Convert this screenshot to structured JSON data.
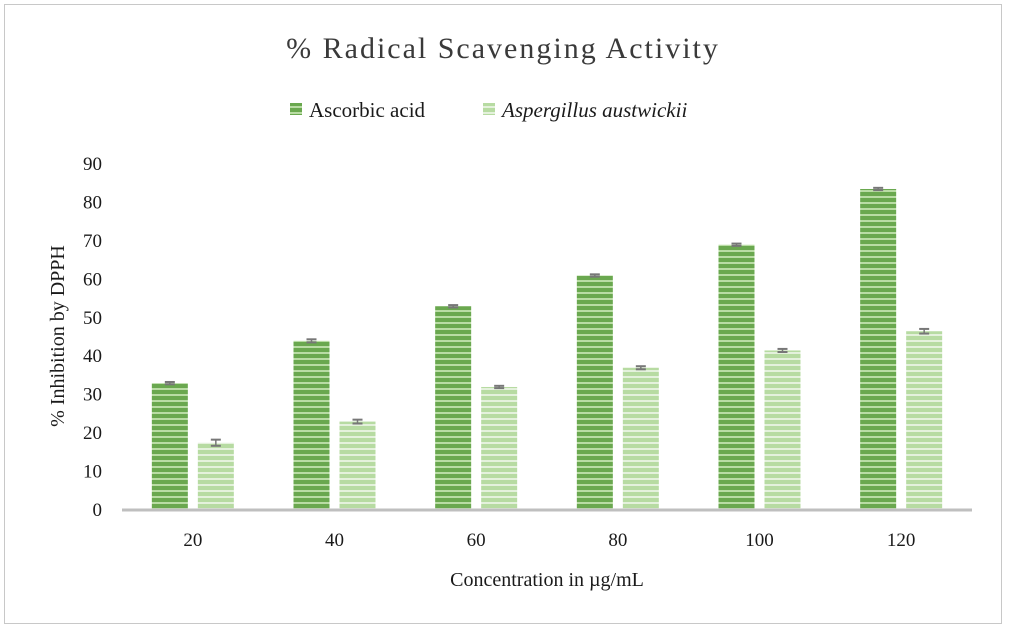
{
  "chart_data": {
    "type": "bar",
    "title": "% Radical Scavenging Activity",
    "xlabel": "Concentration in µg/mL",
    "ylabel": "% Inhibition  by DPPH",
    "categories": [
      "20",
      "40",
      "60",
      "80",
      "100",
      "120"
    ],
    "ylim": [
      0,
      90
    ],
    "yticks": [
      "0",
      "10",
      "20",
      "30",
      "40",
      "50",
      "60",
      "70",
      "80",
      "90"
    ],
    "legend_position": "top",
    "grid": false,
    "series": [
      {
        "name": "Ascorbic acid",
        "values": [
          33,
          44,
          53,
          61,
          69,
          83.5
        ],
        "errors": [
          0.3,
          0.4,
          0.3,
          0.3,
          0.3,
          0.3
        ],
        "color": "#6aa84f",
        "stripe_color": "#b9dca4"
      },
      {
        "name": "Aspergillus austwickii",
        "values": [
          17.5,
          23,
          32,
          37,
          41.5,
          46.5
        ],
        "errors": [
          0.8,
          0.5,
          0.3,
          0.4,
          0.4,
          0.6
        ],
        "color": "#b7dba2",
        "stripe_color": "#e4f1dc"
      }
    ],
    "error_bar_color": "#777777",
    "axis_color": "#bfbfbf"
  }
}
